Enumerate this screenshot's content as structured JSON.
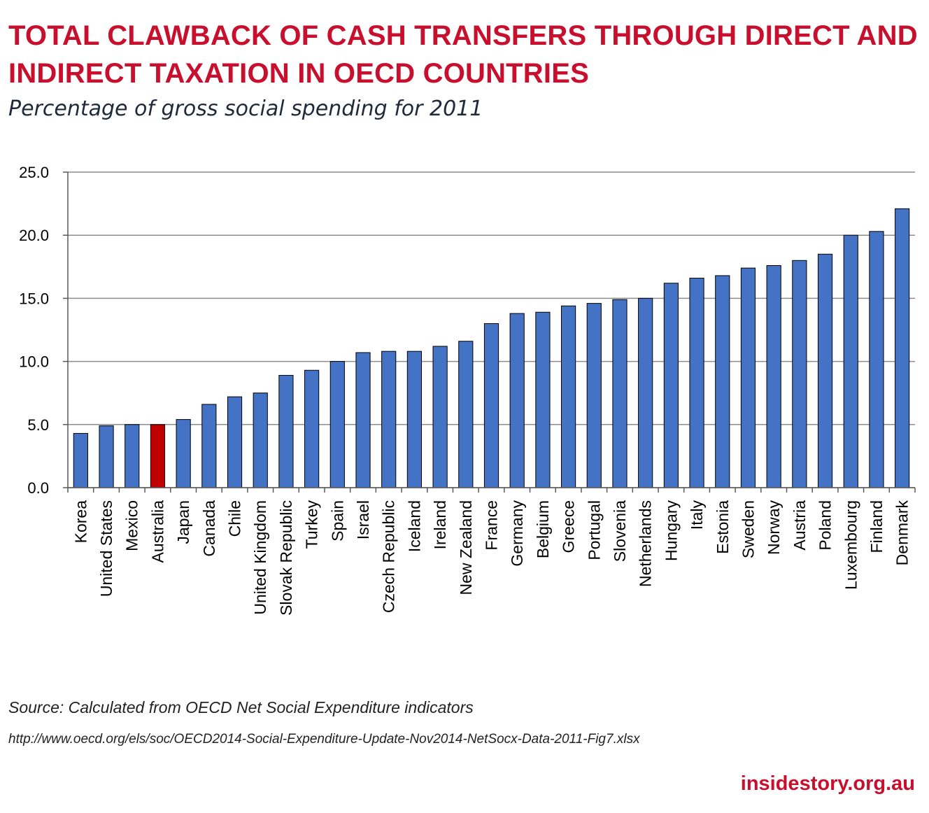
{
  "header": {
    "title": "TOTAL CLAWBACK OF CASH TRANSFERS THROUGH DIRECT AND INDIRECT TAXATION IN OECD COUNTRIES",
    "subtitle": "Percentage of gross social spending for 2011"
  },
  "footer": {
    "source": "Source: Calculated from OECD Net Social Expenditure indicators",
    "url": "http://www.oecd.org/els/soc/OECD2014-Social-Expenditure-Update-Nov2014-NetSocx-Data-2011-Fig7.xlsx",
    "brand": "insidestory.org.au"
  },
  "chart_data": {
    "type": "bar",
    "title": "TOTAL CLAWBACK OF CASH TRANSFERS THROUGH DIRECT AND INDIRECT TAXATION IN OECD COUNTRIES",
    "subtitle": "Percentage of gross social spending for 2011",
    "xlabel": "",
    "ylabel": "",
    "categories": [
      "Korea",
      "United States",
      "Mexico",
      "Australia",
      "Japan",
      "Canada",
      "Chile",
      "United Kingdom",
      "Slovak Republic",
      "Turkey",
      "Spain",
      "Israel",
      "Czech Republic",
      "Iceland",
      "Ireland",
      "New Zealand",
      "France",
      "Germany",
      "Belgium",
      "Greece",
      "Portugal",
      "Slovenia",
      "Netherlands",
      "Hungary",
      "Italy",
      "Estonia",
      "Sweden",
      "Norway",
      "Austria",
      "Poland",
      "Luxembourg",
      "Finland",
      "Denmark"
    ],
    "values": [
      4.3,
      4.9,
      5.0,
      5.0,
      5.4,
      6.6,
      7.2,
      7.5,
      8.9,
      9.3,
      10.0,
      10.7,
      10.8,
      10.8,
      11.2,
      11.6,
      13.0,
      13.8,
      13.9,
      14.4,
      14.6,
      14.9,
      15.0,
      16.2,
      16.6,
      16.8,
      17.4,
      17.6,
      18.0,
      18.5,
      20.0,
      20.3,
      22.1
    ],
    "highlight": "Australia",
    "ylim": [
      0,
      25
    ],
    "yticks": [
      "0.0",
      "5.0",
      "10.0",
      "15.0",
      "20.0",
      "25.0"
    ],
    "grid": true,
    "legend": "none",
    "colors": {
      "bar": "#4472c4",
      "highlight": "#c00000",
      "grid": "#8c8c8c"
    }
  }
}
